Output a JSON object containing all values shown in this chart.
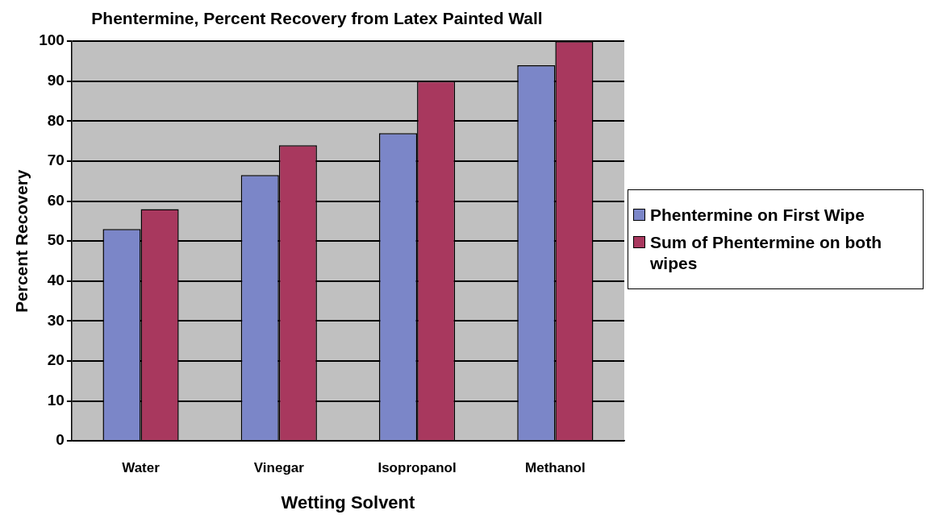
{
  "chart_data": {
    "type": "bar",
    "title": "Phentermine, Percent Recovery from Latex Painted Wall",
    "xlabel": "Wetting Solvent",
    "ylabel": "Percent Recovery",
    "categories": [
      "Water",
      "Vinegar",
      "Isopropanol",
      "Methanol"
    ],
    "series": [
      {
        "name": "Phentermine on First Wipe",
        "color": "#7b86c8",
        "values": [
          53,
          66.5,
          77,
          94
        ]
      },
      {
        "name": "Sum of Phentermine on both wipes",
        "color": "#a8385e",
        "values": [
          58,
          74,
          90,
          100
        ]
      }
    ],
    "ylim": [
      0,
      100
    ],
    "yticks": [
      0,
      10,
      20,
      30,
      40,
      50,
      60,
      70,
      80,
      90,
      100
    ],
    "grid": "y",
    "legend": "right"
  }
}
